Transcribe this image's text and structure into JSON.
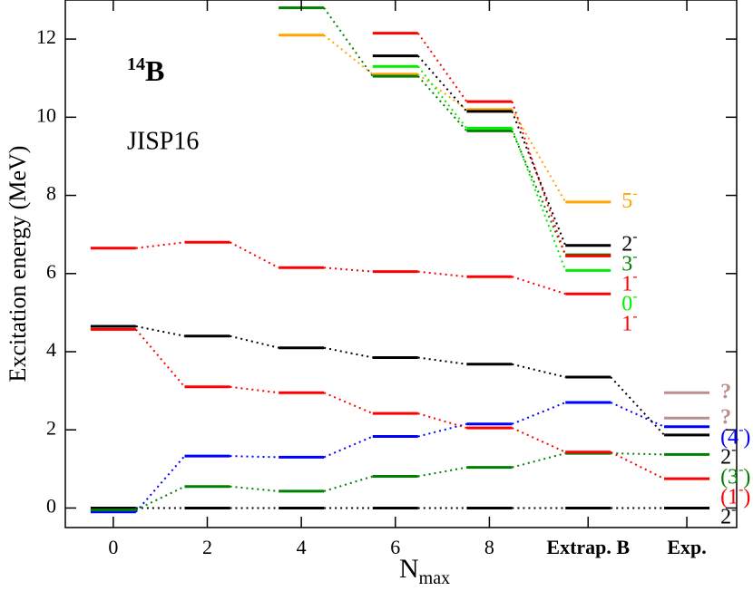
{
  "chart_data": {
    "type": "level-scheme",
    "title": {
      "mass": "14",
      "element": "B"
    },
    "subtitle": "JISP16",
    "ylabel": "Excitation energy (MeV)",
    "xlabel": {
      "base": "N",
      "sub": "max"
    },
    "x": [
      0,
      2,
      4,
      6,
      8,
      10.1,
      12.2
    ],
    "xlim": [
      -1.02,
      13.26
    ],
    "xticks": [
      0,
      2,
      4,
      6,
      8,
      {
        "value": 10.1,
        "label": "Extrap. B"
      },
      {
        "value": 12.2,
        "label": "Exp."
      }
    ],
    "ylim": [
      -0.5,
      13
    ],
    "yticks": [
      0,
      2,
      4,
      6,
      8,
      10,
      12
    ],
    "series": [
      {
        "color": "#000000",
        "values": [
          0,
          0,
          0,
          0,
          0,
          0,
          0
        ],
        "label": "2",
        "label_sup": "-"
      },
      {
        "color": "#0000ff",
        "values": [
          -0.1,
          1.33,
          1.3,
          1.83,
          2.15,
          2.7,
          2.08
        ],
        "label": "(4",
        "label_sup": "-",
        "label_end": ")"
      },
      {
        "color": "#008000",
        "values": [
          -0.05,
          0.55,
          0.43,
          0.81,
          1.04,
          1.4,
          1.37
        ],
        "label": "(3",
        "label_sup": "-",
        "label_end": ")"
      },
      {
        "color": "#ff0000",
        "values": [
          4.57,
          3.1,
          2.95,
          2.42,
          2.05,
          1.43,
          0.75
        ],
        "label": "(1",
        "label_sup": "-",
        "label_end": ")"
      },
      {
        "color": "#000000",
        "values": [
          4.65,
          4.4,
          4.1,
          3.85,
          3.68,
          3.35,
          1.87
        ],
        "label": "2",
        "label_sup": "-"
      },
      {
        "color": "#ff0000",
        "values": [
          6.65,
          6.8,
          6.15,
          6.05,
          5.92,
          5.48,
          null
        ],
        "label": "1",
        "label_sup": "-"
      },
      {
        "color": "#ffa500",
        "values": [
          null,
          null,
          12.1,
          11.1,
          10.2,
          7.83,
          null
        ],
        "label": "5",
        "label_sup": "-"
      },
      {
        "color": "#008000",
        "values": [
          null,
          null,
          12.8,
          11.05,
          9.65,
          6.48,
          null
        ],
        "label": "3",
        "label_sup": "-"
      },
      {
        "color": "#000000",
        "values": [
          null,
          null,
          null,
          11.57,
          10.15,
          6.72,
          null
        ],
        "label": "2",
        "label_sup": "-"
      },
      {
        "color": "#ff0000",
        "values": [
          null,
          null,
          null,
          12.15,
          10.4,
          6.45,
          null
        ],
        "label": "1",
        "label_sup": "-"
      },
      {
        "color": "#00ee00",
        "values": [
          null,
          null,
          null,
          11.3,
          9.72,
          6.08,
          null
        ],
        "label": "0",
        "label_sup": "-"
      },
      {
        "color": "#bc8f8f",
        "values": [
          null,
          null,
          null,
          null,
          null,
          null,
          2.95
        ],
        "label": "?"
      },
      {
        "color": "#bc8f8f",
        "values": [
          null,
          null,
          null,
          null,
          null,
          null,
          2.3
        ],
        "label": "?"
      }
    ]
  }
}
